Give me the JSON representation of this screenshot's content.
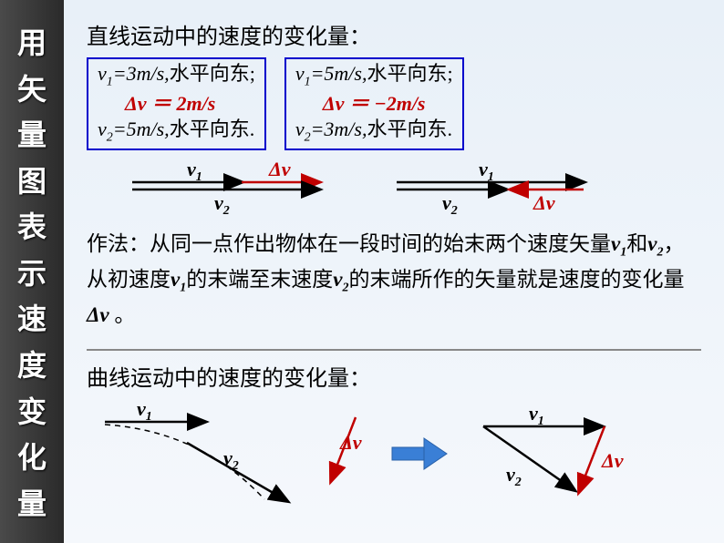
{
  "sidebar_chars": [
    "用",
    "矢",
    "量",
    "图",
    "表",
    "示",
    "速",
    "度",
    "变",
    "化",
    "量"
  ],
  "title1": "直线运动中的速度的变化量：",
  "box1": {
    "line1_pre": "v",
    "line1_sub": "1",
    "line1_post": "=3m/s,",
    "line1_cn": "水平向东;",
    "dv": "Δv ＝ 2m/s",
    "line2_pre": "v",
    "line2_sub": "2",
    "line2_post": "=5m/s,",
    "line2_cn": "水平向东."
  },
  "box2": {
    "line1_pre": "v",
    "line1_sub": "1",
    "line1_post": "=5m/s,",
    "line1_cn": "水平向东;",
    "dv": "Δv ＝ −2m/s",
    "line2_pre": "v",
    "line2_sub": "2",
    "line2_post": "=3m/s,",
    "line2_cn": "水平向东."
  },
  "diagram_labels": {
    "v1": "v",
    "v1s": "1",
    "v2": "v",
    "v2s": "2",
    "dv": "Δv"
  },
  "method_parts": {
    "p1": "作法：从同一点作出物体在一段时间的始末两个速度矢量",
    "v1": "v",
    "s1": "1",
    "and": "和",
    "v2": "v",
    "s2": "2",
    "p2": "，从初速度",
    "v1b": "v",
    "s1b": "1",
    "p3": "的末端至末速度",
    "v2b": "v",
    "s2b": "2",
    "p4": "的末端所作的矢量就是速度的变化量",
    "dv": "Δv",
    "p5": " 。"
  },
  "title2": "曲线运动中的速度的变化量：",
  "colors": {
    "red": "#c00000",
    "black": "#000000",
    "blue_arrow": "#3a7fd6"
  }
}
